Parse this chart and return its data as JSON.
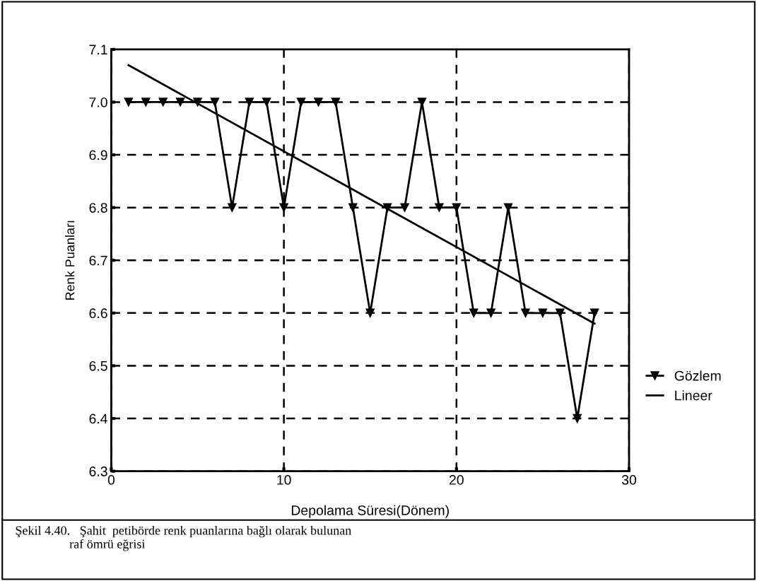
{
  "chart_data": {
    "type": "line",
    "xlabel": "Depolama Süresi(Dönem)",
    "ylabel": "Renk Puanları",
    "xlim": [
      0,
      30
    ],
    "xticks": [
      0,
      10,
      20,
      30
    ],
    "ylim": [
      6.3,
      7.1
    ],
    "yticks": [
      6.3,
      6.4,
      6.5,
      6.6,
      6.7,
      6.8,
      6.9,
      {
        "value": 7,
        "label": "7.0"
      },
      7.1
    ],
    "grid": true,
    "legend": "right",
    "series": [
      {
        "name": "Gözlem",
        "color": "#000000",
        "marker": "triangle",
        "x": [
          1,
          2,
          3,
          4,
          5,
          6,
          7,
          8,
          9,
          10,
          11,
          12,
          13,
          14,
          15,
          16,
          17,
          18,
          19,
          20,
          21,
          22,
          23,
          24,
          25,
          26,
          27,
          28
        ],
        "values": [
          7.0,
          7.0,
          7.0,
          7.0,
          7.0,
          7.0,
          6.8,
          7.0,
          7.0,
          6.8,
          7.0,
          7.0,
          7.0,
          6.8,
          6.6,
          6.8,
          6.8,
          7.0,
          6.8,
          6.8,
          6.6,
          6.6,
          6.8,
          6.6,
          6.6,
          6.6,
          6.4,
          6.6
        ]
      },
      {
        "name": "Lineer",
        "color": "#000000",
        "marker": "none",
        "x": [
          1,
          28
        ],
        "values": [
          7.07,
          6.58
        ]
      }
    ],
    "annotations": [
      "Şekil 4.40.   Şahit  petibörde renk puanlarına bağlı olarak bulunan\n                 raf ömrü eğrisi"
    ]
  }
}
